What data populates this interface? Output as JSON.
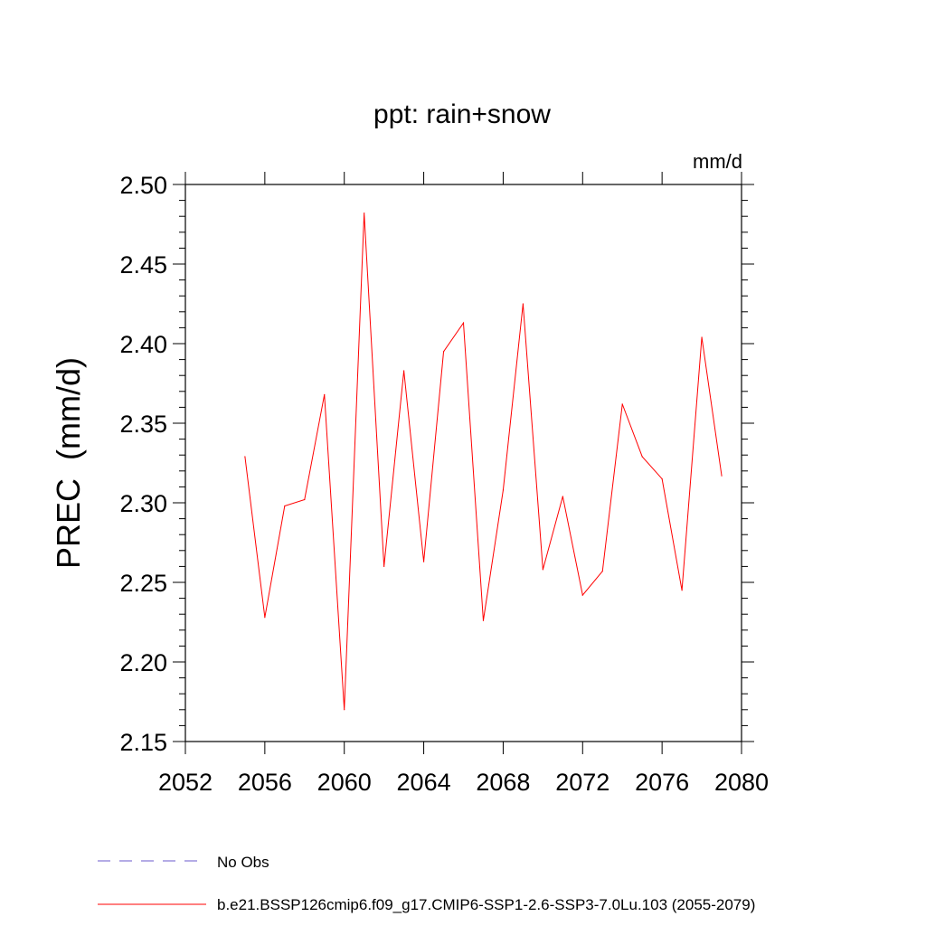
{
  "chart_data": {
    "type": "line",
    "title": "ppt: rain+snow",
    "units_label": "mm/d",
    "xlabel": "",
    "ylabel": "PREC  (mm/d)",
    "xlim": [
      2052,
      2080
    ],
    "ylim": [
      2.15,
      2.5
    ],
    "xticks": [
      2052,
      2056,
      2060,
      2064,
      2068,
      2072,
      2076,
      2080
    ],
    "yticks": [
      2.15,
      2.2,
      2.25,
      2.3,
      2.35,
      2.4,
      2.45,
      2.5
    ],
    "ytick_labels": [
      "2.15",
      "2.20",
      "2.25",
      "2.30",
      "2.35",
      "2.40",
      "2.45",
      "2.50"
    ],
    "grid": false,
    "x": [
      2055,
      2056,
      2057,
      2058,
      2059,
      2060,
      2061,
      2062,
      2063,
      2064,
      2065,
      2066,
      2067,
      2068,
      2069,
      2070,
      2071,
      2072,
      2073,
      2074,
      2075,
      2076,
      2077,
      2078,
      2079
    ],
    "series": [
      {
        "name": "b.e21.BSSP126cmip6.f09_g17.CMIP6-SSP1-2.6-SSP3-7.0Lu.103 (2055-2079)",
        "color": "#ff0000",
        "values": [
          2.329,
          2.228,
          2.298,
          2.302,
          2.368,
          2.17,
          2.482,
          2.26,
          2.383,
          2.263,
          2.395,
          2.413,
          2.226,
          2.308,
          2.425,
          2.258,
          2.304,
          2.242,
          2.257,
          2.362,
          2.329,
          2.315,
          2.245,
          2.404,
          2.317
        ]
      }
    ],
    "legend": [
      {
        "label": "No Obs",
        "style": "dashed",
        "color": "#6a5acd"
      },
      {
        "label": "b.e21.BSSP126cmip6.f09_g17.CMIP6-SSP1-2.6-SSP3-7.0Lu.103 (2055-2079)",
        "style": "solid",
        "color": "#ff0000"
      }
    ],
    "legend_position": "bottom-left"
  }
}
